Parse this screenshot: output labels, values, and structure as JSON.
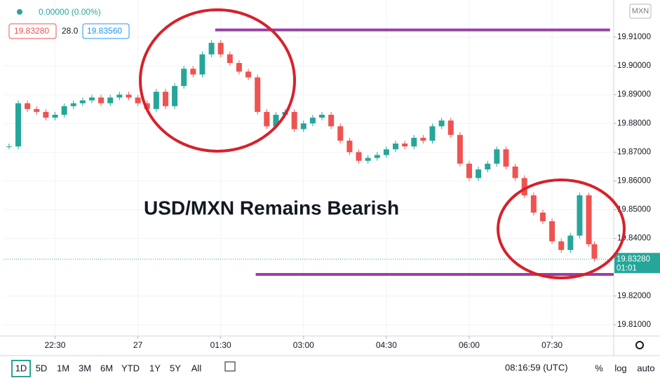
{
  "header": {
    "change": "0.00000 (0.00%)",
    "bid": "19.83280",
    "spread": "28.0",
    "ask": "19.83560",
    "currency": "MXN"
  },
  "chart_data": {
    "type": "candlestick",
    "title": "USD/MXN Remains Bearish",
    "x": [
      1300,
      1310,
      1320,
      1330,
      1340,
      1350,
      1360,
      1370,
      1380,
      1390,
      1400,
      1410,
      1420,
      1430,
      1440,
      1450,
      1460,
      1470,
      1480,
      1490,
      1500,
      1510,
      1520,
      1530,
      1540,
      1550,
      1560,
      1570,
      1580,
      1590,
      1600,
      1610,
      1620,
      1630,
      1640,
      1650,
      1660,
      1670,
      1680,
      1690,
      1700,
      1710,
      1720,
      1730,
      1740,
      1750,
      1760,
      1770,
      1780,
      1790,
      1800,
      1810,
      1820,
      1830,
      1840,
      1850,
      1860,
      1870,
      1880,
      1890,
      1900,
      1910,
      1920,
      1930,
      1936
    ],
    "values": [
      19.872,
      19.887,
      19.885,
      19.884,
      19.882,
      19.883,
      19.886,
      19.887,
      19.888,
      19.889,
      19.887,
      19.889,
      19.89,
      19.889,
      19.887,
      19.885,
      19.891,
      19.886,
      19.893,
      19.899,
      19.897,
      19.904,
      19.908,
      19.904,
      19.901,
      19.898,
      19.896,
      19.884,
      19.879,
      19.883,
      19.884,
      19.878,
      19.88,
      19.882,
      19.883,
      19.879,
      19.874,
      19.87,
      19.867,
      19.868,
      19.869,
      19.871,
      19.873,
      19.872,
      19.875,
      19.874,
      19.879,
      19.881,
      19.876,
      19.866,
      19.861,
      19.864,
      19.866,
      19.871,
      19.865,
      19.861,
      19.855,
      19.849,
      19.846,
      19.839,
      19.836,
      19.841,
      19.855,
      19.838,
      19.833
    ],
    "up_color": "#26a69a",
    "down_color": "#ef5350",
    "xlim": [
      1294,
      1957
    ],
    "xticks": [
      {
        "value": 1350,
        "label": "22:30"
      },
      {
        "value": 1440,
        "label": "27"
      },
      {
        "value": 1530,
        "label": "01:30"
      },
      {
        "value": 1620,
        "label": "03:00"
      },
      {
        "value": 1710,
        "label": "04:30"
      },
      {
        "value": 1800,
        "label": "06:00"
      },
      {
        "value": 1890,
        "label": "07:30"
      }
    ],
    "ylim": [
      19.8061,
      19.9229
    ],
    "yticks": [
      {
        "value": 19.81,
        "label": "19.81000"
      },
      {
        "value": 19.82,
        "label": "19.82000"
      },
      {
        "value": 19.84,
        "label": "19.84000"
      },
      {
        "value": 19.85,
        "label": "19.85000"
      },
      {
        "value": 19.86,
        "label": "19.86000"
      },
      {
        "value": 19.87,
        "label": "19.87000"
      },
      {
        "value": 19.88,
        "label": "19.88000"
      },
      {
        "value": 19.89,
        "label": "19.89000"
      },
      {
        "value": 19.9,
        "label": "19.90000"
      },
      {
        "value": 19.91,
        "label": "19.91000"
      }
    ],
    "grid": true,
    "last_price": {
      "value": 19.8328,
      "label": "19.83280"
    },
    "countdown": "01:01",
    "lines": [
      {
        "color": "#9b3fa8",
        "value": 19.9125,
        "x": [
          1524,
          1953
        ]
      },
      {
        "color": "#9b3fa8",
        "value": 19.8275,
        "x": [
          1568,
          1957
        ]
      }
    ]
  },
  "toolbar": {
    "ranges": [
      "1D",
      "5D",
      "1M",
      "3M",
      "6M",
      "YTD",
      "1Y",
      "5Y",
      "All"
    ],
    "clock": "08:16:59 (UTC)",
    "options": [
      "%",
      "log",
      "auto"
    ]
  }
}
